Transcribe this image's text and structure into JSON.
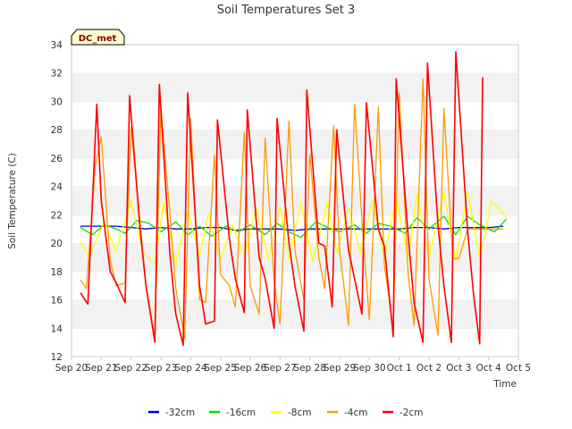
{
  "chart_data": {
    "type": "line",
    "title": "Soil Temperatures Set 3",
    "xlabel": "Time",
    "ylabel": "Soil Temperature (C)",
    "station_label": "DC_met",
    "ylim": [
      12,
      34
    ],
    "yticks": [
      12,
      14,
      16,
      18,
      20,
      22,
      24,
      26,
      28,
      30,
      32,
      34
    ],
    "xlim": [
      0,
      15
    ],
    "xtick_labels": [
      "Sep 20",
      "Sep 21",
      "Sep 22",
      "Sep 23",
      "Sep 24",
      "Sep 25",
      "Sep 26",
      "Sep 27",
      "Sep 28",
      "Sep 29",
      "Sep 30",
      "Oct 1",
      "Oct 2",
      "Oct 3",
      "Oct 4",
      "Oct 5"
    ],
    "grid": "horizontal bands",
    "legend_position": "bottom",
    "series": [
      {
        "name": "-32cm",
        "color": "#0000cc",
        "x": [
          0.3,
          1.0,
          1.5,
          2.0,
          2.5,
          3.0,
          3.5,
          4.0,
          4.5,
          5.0,
          5.5,
          6.0,
          6.5,
          7.0,
          7.5,
          8.0,
          8.5,
          9.0,
          9.5,
          10.0,
          10.5,
          11.0,
          11.5,
          12.0,
          12.5,
          13.0,
          13.5,
          14.0,
          14.5
        ],
        "y": [
          21.2,
          21.2,
          21.2,
          21.1,
          21.0,
          21.1,
          21.0,
          21.0,
          21.1,
          21.1,
          20.9,
          21.0,
          21.0,
          21.0,
          20.9,
          21.0,
          21.0,
          21.0,
          21.0,
          21.0,
          21.0,
          21.0,
          21.1,
          21.1,
          21.0,
          21.1,
          21.1,
          21.1,
          21.2
        ]
      },
      {
        "name": "-16cm",
        "color": "#00e000",
        "x": [
          0.3,
          0.7,
          1.1,
          1.5,
          1.8,
          2.2,
          2.6,
          3.0,
          3.5,
          3.9,
          4.3,
          4.7,
          5.2,
          5.6,
          6.0,
          6.5,
          6.9,
          7.3,
          7.7,
          8.2,
          8.6,
          9.0,
          9.5,
          9.9,
          10.3,
          10.7,
          11.2,
          11.6,
          12.0,
          12.5,
          12.9,
          13.3,
          13.7,
          14.2,
          14.6
        ],
        "y": [
          21.1,
          20.6,
          21.3,
          21.0,
          20.7,
          21.6,
          21.4,
          20.8,
          21.5,
          20.6,
          21.2,
          20.5,
          21.2,
          20.8,
          21.3,
          20.6,
          21.4,
          20.8,
          20.4,
          21.5,
          21.1,
          20.8,
          21.3,
          20.7,
          21.4,
          21.2,
          20.7,
          21.8,
          21.0,
          21.9,
          20.6,
          21.9,
          21.3,
          20.8,
          21.7
        ]
      },
      {
        "name": "-8cm",
        "color": "#ffff00",
        "x": [
          0.3,
          0.6,
          1.1,
          1.5,
          2.0,
          2.4,
          2.8,
          3.1,
          3.5,
          3.9,
          4.3,
          4.6,
          5.0,
          5.4,
          5.8,
          6.2,
          6.6,
          7.0,
          7.3,
          7.7,
          8.1,
          8.6,
          8.9,
          9.3,
          9.7,
          10.1,
          10.5,
          10.9,
          11.3,
          11.6,
          12.0,
          12.5,
          12.9,
          13.3,
          13.7,
          14.1,
          14.6
        ],
        "y": [
          20.1,
          19.1,
          21.5,
          19.4,
          23.0,
          19.3,
          18.6,
          22.9,
          18.5,
          22.3,
          19.1,
          22.1,
          18.8,
          21.3,
          19.1,
          22.5,
          18.9,
          22.5,
          18.9,
          22.9,
          18.7,
          23.0,
          19.3,
          22.5,
          19.3,
          23.0,
          19.0,
          23.3,
          18.9,
          23.5,
          19.0,
          23.6,
          18.8,
          23.7,
          18.9,
          23.0,
          21.8
        ]
      },
      {
        "name": "-4cm",
        "color": "#ff9900",
        "x": [
          0.3,
          0.5,
          0.8,
          1.0,
          1.3,
          1.5,
          1.8,
          2.0,
          2.3,
          2.5,
          2.8,
          3.0,
          3.3,
          3.5,
          3.8,
          4.0,
          4.3,
          4.5,
          4.8,
          5.0,
          5.3,
          5.5,
          5.8,
          6.0,
          6.3,
          6.5,
          6.8,
          7.0,
          7.3,
          7.5,
          7.8,
          8.0,
          8.3,
          8.5,
          8.8,
          9.0,
          9.3,
          9.5,
          9.8,
          10.0,
          10.3,
          10.5,
          10.8,
          11.0,
          11.3,
          11.5,
          11.8,
          12.0,
          12.3,
          12.5,
          12.8,
          13.0,
          13.3,
          13.5,
          13.8,
          14.0,
          14.3,
          14.5
        ],
        "y": [
          17.4,
          16.8,
          25.5,
          27.5,
          18.8,
          17.0,
          17.2,
          28.2,
          21.5,
          17.0,
          13.4,
          29.5,
          22.2,
          16.8,
          13.3,
          28.8,
          16.0,
          15.8,
          26.2,
          17.8,
          17.0,
          15.5,
          27.8,
          17.0,
          15.0,
          27.4,
          17.3,
          14.3,
          28.6,
          19.5,
          16.0,
          26.3,
          19.0,
          16.8,
          28.3,
          19.5,
          14.2,
          29.8,
          20.0,
          14.6,
          29.6,
          18.5,
          14.0,
          30.6,
          17.8,
          14.2,
          31.6,
          17.5,
          13.5,
          29.5,
          18.9,
          18.9,
          21.0,
          21.0,
          21.0,
          21.0,
          21.0,
          21.0
        ]
      },
      {
        "name": "-2cm",
        "color": "#ff0000",
        "x": [
          0.3,
          0.55,
          0.85,
          1.0,
          1.3,
          1.5,
          1.8,
          1.95,
          2.3,
          2.5,
          2.8,
          2.95,
          3.3,
          3.5,
          3.75,
          3.9,
          4.3,
          4.5,
          4.8,
          4.9,
          5.3,
          5.5,
          5.8,
          5.9,
          6.3,
          6.5,
          6.8,
          6.9,
          7.3,
          7.5,
          7.8,
          7.9,
          8.3,
          8.5,
          8.75,
          8.9,
          9.3,
          9.5,
          9.75,
          9.9,
          10.3,
          10.5,
          10.8,
          10.9,
          11.3,
          11.5,
          11.8,
          11.95,
          12.3,
          12.5,
          12.75,
          12.9,
          13.3,
          13.5,
          13.7,
          13.8
        ],
        "y": [
          16.5,
          15.7,
          29.8,
          23.0,
          18.0,
          17.2,
          15.8,
          30.4,
          21.0,
          17.0,
          13.0,
          31.2,
          19.3,
          15.0,
          12.8,
          30.6,
          17.0,
          14.3,
          14.5,
          28.7,
          20.3,
          17.5,
          15.1,
          29.4,
          19.0,
          17.5,
          14.0,
          28.8,
          20.0,
          17.0,
          13.8,
          30.8,
          20.0,
          19.8,
          15.5,
          28.0,
          19.5,
          17.5,
          15.0,
          29.9,
          21.0,
          19.8,
          13.4,
          31.6,
          20.5,
          15.8,
          13.0,
          32.7,
          21.3,
          17.0,
          13.0,
          33.5,
          20.8,
          16.3,
          12.9,
          31.7
        ]
      }
    ]
  }
}
